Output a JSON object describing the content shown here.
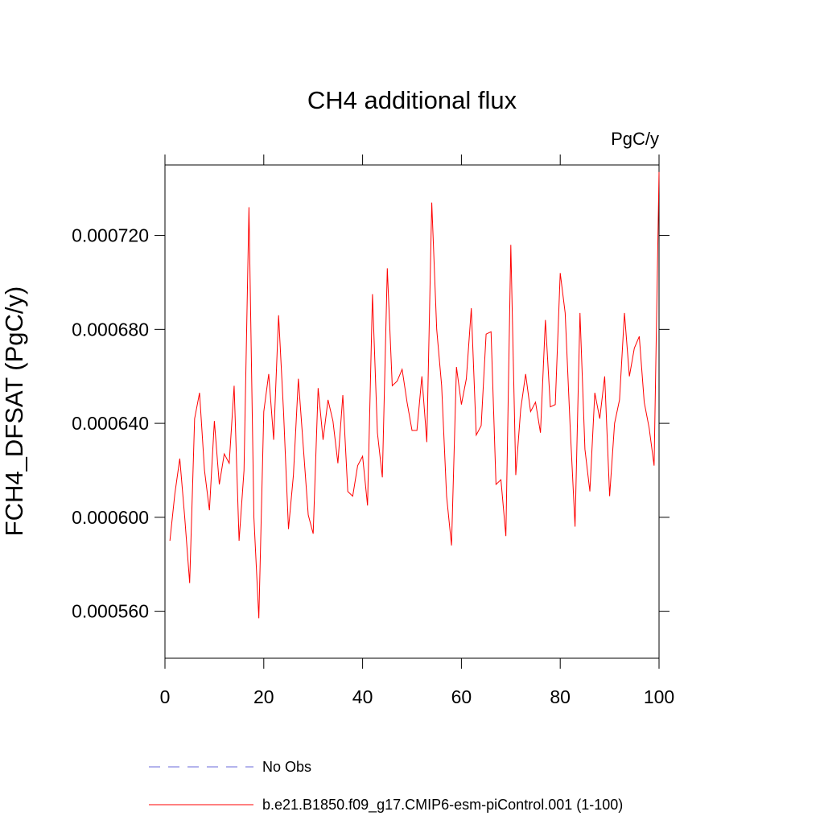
{
  "chart_data": {
    "type": "line",
    "title": "CH4 additional flux",
    "units_label": "PgC/y",
    "y_label": "FCH4_DFSAT  (PgC/y)",
    "x": [
      1,
      2,
      3,
      4,
      5,
      6,
      7,
      8,
      9,
      10,
      11,
      12,
      13,
      14,
      15,
      16,
      17,
      18,
      19,
      20,
      21,
      22,
      23,
      24,
      25,
      26,
      27,
      28,
      29,
      30,
      31,
      32,
      33,
      34,
      35,
      36,
      37,
      38,
      39,
      40,
      41,
      42,
      43,
      44,
      45,
      46,
      47,
      48,
      49,
      50,
      51,
      52,
      53,
      54,
      55,
      56,
      57,
      58,
      59,
      60,
      61,
      62,
      63,
      64,
      65,
      66,
      67,
      68,
      69,
      70,
      71,
      72,
      73,
      74,
      75,
      76,
      77,
      78,
      79,
      80,
      81,
      82,
      83,
      84,
      85,
      86,
      87,
      88,
      89,
      90,
      91,
      92,
      93,
      94,
      95,
      96,
      97,
      98,
      99,
      100
    ],
    "series": [
      {
        "name": "b.e21.B1850.f09_g17.CMIP6-esm-piControl.001 (1-100)",
        "color": "#ff0000",
        "values": [
          0.00059,
          0.00061,
          0.000625,
          0.0006,
          0.000572,
          0.000642,
          0.000653,
          0.00062,
          0.000603,
          0.000641,
          0.000614,
          0.000627,
          0.000623,
          0.000656,
          0.00059,
          0.00062,
          0.000732,
          0.0006,
          0.000557,
          0.000645,
          0.000661,
          0.000633,
          0.000686,
          0.000645,
          0.000595,
          0.000618,
          0.000659,
          0.00063,
          0.000601,
          0.000593,
          0.000655,
          0.000633,
          0.00065,
          0.000641,
          0.000623,
          0.000652,
          0.000611,
          0.000609,
          0.000622,
          0.000626,
          0.000605,
          0.000695,
          0.000636,
          0.000617,
          0.000706,
          0.000656,
          0.000658,
          0.000663,
          0.000649,
          0.000637,
          0.000637,
          0.00066,
          0.000632,
          0.000734,
          0.00068,
          0.000656,
          0.000609,
          0.000588,
          0.000664,
          0.000648,
          0.000659,
          0.000689,
          0.000635,
          0.000639,
          0.000678,
          0.000679,
          0.000614,
          0.000616,
          0.000592,
          0.000716,
          0.000618,
          0.000646,
          0.000661,
          0.000645,
          0.000649,
          0.000636,
          0.000684,
          0.000647,
          0.000648,
          0.000704,
          0.000687,
          0.000639,
          0.000596,
          0.000687,
          0.000629,
          0.000611,
          0.000653,
          0.000642,
          0.00066,
          0.000609,
          0.00064,
          0.00065,
          0.000687,
          0.00066,
          0.000672,
          0.000677,
          0.000649,
          0.000638,
          0.000622,
          0.000747
        ]
      }
    ],
    "obs_legend": {
      "name": "No Obs",
      "color": "#6a6ad8",
      "dashed": true
    },
    "xlim": [
      0,
      100
    ],
    "xticks": [
      0,
      20,
      40,
      60,
      80,
      100
    ],
    "ylim": [
      0.00054,
      0.00075
    ],
    "yticks": [
      {
        "value": 0.00056,
        "label": "0.000560"
      },
      {
        "value": 0.0006,
        "label": "0.000600"
      },
      {
        "value": 0.00064,
        "label": "0.000640"
      },
      {
        "value": 0.00068,
        "label": "0.000680"
      },
      {
        "value": 0.00072,
        "label": "0.000720"
      }
    ]
  }
}
